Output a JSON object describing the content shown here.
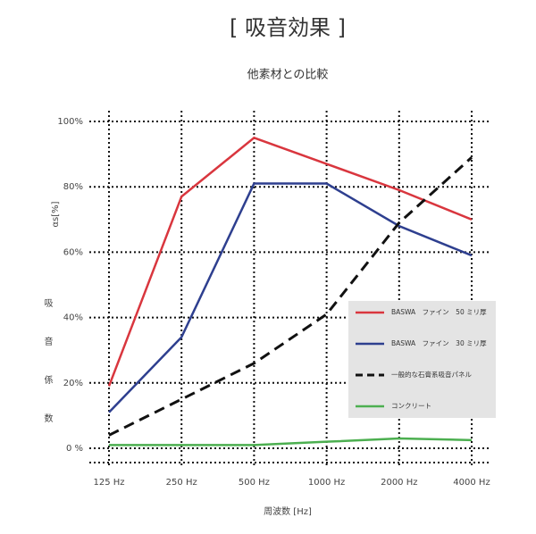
{
  "chart_data": {
    "type": "line",
    "title": "[ 吸音効果 ]",
    "subtitle": "他素材との比較",
    "y_label": "αs[%]",
    "y_label_2": "吸音係数",
    "x_label": "周波数 [Hz]",
    "categories": [
      "125 Hz",
      "250 Hz",
      "500 Hz",
      "1000 Hz",
      "2000 Hz",
      "4000 Hz"
    ],
    "series": [
      {
        "name": "BASWA　ファイン　50 ミリ厚",
        "color": "#d9363e",
        "dash": false,
        "values": [
          19,
          77,
          95,
          87,
          79,
          70
        ]
      },
      {
        "name": "BASWA　ファイン　30 ミリ厚",
        "color": "#2e3f8f",
        "dash": false,
        "values": [
          11,
          34,
          81,
          81,
          68,
          59
        ]
      },
      {
        "name": "一般的な石膏系吸音パネル",
        "color": "#111111",
        "dash": true,
        "values": [
          4,
          15,
          26,
          41,
          69,
          89
        ]
      },
      {
        "name": "コンクリート",
        "color": "#4caf50",
        "dash": false,
        "values": [
          1,
          1,
          1,
          2,
          3,
          2.5
        ]
      }
    ],
    "ylim": [
      0,
      100
    ],
    "yticks": [
      {
        "value": 0,
        "label": "0 %"
      },
      {
        "value": 20,
        "label": "20%"
      },
      {
        "value": 40,
        "label": "40%"
      },
      {
        "value": 60,
        "label": "60%"
      },
      {
        "value": 80,
        "label": "80%"
      },
      {
        "value": 100,
        "label": "100%"
      }
    ],
    "grid": true,
    "legend": "right"
  }
}
